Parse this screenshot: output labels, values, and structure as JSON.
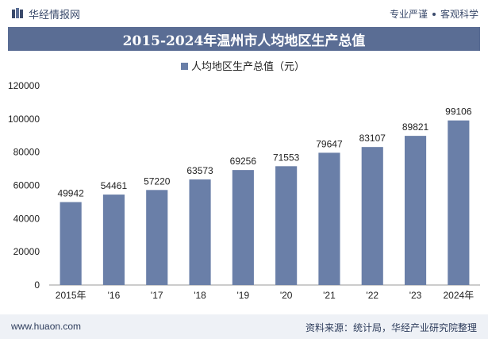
{
  "header": {
    "brand": "华经情报网",
    "tagline_left": "专业严谨",
    "tagline_right": "客观科学"
  },
  "chart_data": {
    "type": "bar",
    "title": "2015-2024年温州市人均地区生产总值",
    "categories": [
      "2015年",
      "'16",
      "'17",
      "'18",
      "'19",
      "'20",
      "'21",
      "'22",
      "'23",
      "2024年"
    ],
    "series": [
      {
        "name": "人均地区生产总值（元）",
        "values": [
          49942,
          54461,
          57220,
          63573,
          69256,
          71553,
          79647,
          83107,
          89821,
          99106
        ],
        "color": "#6a7fa8"
      }
    ],
    "ylim": [
      0,
      120000
    ],
    "yticks": [
      0,
      20000,
      40000,
      60000,
      80000,
      100000,
      120000
    ],
    "xlabel": "",
    "ylabel": "",
    "grid": false,
    "legend": "top-center"
  },
  "footer": {
    "website": "www.huaon.com",
    "source": "资料来源：统计局，华经产业研究院整理"
  }
}
